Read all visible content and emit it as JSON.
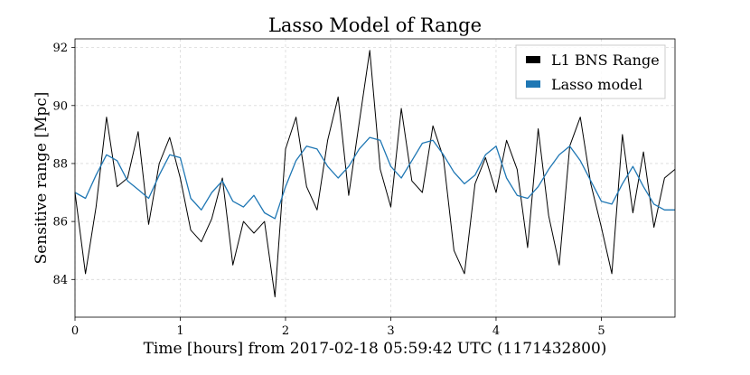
{
  "chart_data": {
    "type": "line",
    "title": "Lasso Model of Range",
    "xlabel": "Time [hours] from 2017-02-18 05:59:42 UTC (1171432800)",
    "ylabel": "Sensitive range [Mpc]",
    "xlim": [
      0,
      5.7
    ],
    "ylim": [
      82.7,
      92.3
    ],
    "xticks": [
      0,
      1,
      2,
      3,
      4,
      5
    ],
    "xtick_labels": [
      "0",
      "1",
      "2",
      "3",
      "4",
      "5"
    ],
    "yticks": [
      84,
      86,
      88,
      90,
      92
    ],
    "ytick_labels": [
      "84",
      "86",
      "88",
      "90",
      "92"
    ],
    "grid": true,
    "legend_position": "top-right",
    "series": [
      {
        "name": "L1 BNS Range",
        "color": "#000000",
        "x": [
          0.0,
          0.1,
          0.2,
          0.3,
          0.4,
          0.5,
          0.6,
          0.7,
          0.8,
          0.9,
          1.0,
          1.1,
          1.2,
          1.3,
          1.4,
          1.5,
          1.6,
          1.7,
          1.8,
          1.9,
          2.0,
          2.1,
          2.2,
          2.3,
          2.4,
          2.5,
          2.6,
          2.7,
          2.8,
          2.9,
          3.0,
          3.1,
          3.2,
          3.3,
          3.4,
          3.5,
          3.6,
          3.7,
          3.8,
          3.9,
          4.0,
          4.1,
          4.2,
          4.3,
          4.4,
          4.5,
          4.6,
          4.7,
          4.8,
          4.9,
          5.0,
          5.1,
          5.2,
          5.3,
          5.4,
          5.5,
          5.6,
          5.7
        ],
        "values": [
          87.0,
          84.2,
          86.5,
          89.6,
          87.2,
          87.5,
          89.1,
          85.9,
          88.0,
          88.9,
          87.5,
          85.7,
          85.3,
          86.1,
          87.5,
          84.5,
          86.0,
          85.6,
          86.0,
          83.4,
          88.5,
          89.6,
          87.2,
          86.4,
          88.8,
          90.3,
          86.9,
          89.4,
          91.9,
          87.8,
          86.5,
          89.9,
          87.4,
          87.0,
          89.3,
          88.2,
          85.0,
          84.2,
          87.3,
          88.2,
          87.0,
          88.8,
          87.8,
          85.1,
          89.2,
          86.2,
          84.5,
          88.6,
          89.6,
          87.3,
          85.8,
          84.2,
          89.0,
          86.3,
          88.4,
          85.8,
          87.5,
          87.8
        ]
      },
      {
        "name": "Lasso model",
        "color": "#1f77b4",
        "x": [
          0.0,
          0.1,
          0.2,
          0.3,
          0.4,
          0.5,
          0.6,
          0.7,
          0.8,
          0.9,
          1.0,
          1.1,
          1.2,
          1.3,
          1.4,
          1.5,
          1.6,
          1.7,
          1.8,
          1.9,
          2.0,
          2.1,
          2.2,
          2.3,
          2.4,
          2.5,
          2.6,
          2.7,
          2.8,
          2.9,
          3.0,
          3.1,
          3.2,
          3.3,
          3.4,
          3.5,
          3.6,
          3.7,
          3.8,
          3.9,
          4.0,
          4.1,
          4.2,
          4.3,
          4.4,
          4.5,
          4.6,
          4.7,
          4.8,
          4.9,
          5.0,
          5.1,
          5.2,
          5.3,
          5.4,
          5.5,
          5.6,
          5.7
        ],
        "values": [
          87.0,
          86.8,
          87.6,
          88.3,
          88.1,
          87.4,
          87.1,
          86.8,
          87.6,
          88.3,
          88.2,
          86.8,
          86.4,
          87.0,
          87.4,
          86.7,
          86.5,
          86.9,
          86.3,
          86.1,
          87.2,
          88.1,
          88.6,
          88.5,
          87.9,
          87.5,
          87.9,
          88.5,
          88.9,
          88.8,
          87.9,
          87.5,
          88.1,
          88.7,
          88.8,
          88.3,
          87.7,
          87.3,
          87.6,
          88.3,
          88.6,
          87.5,
          86.9,
          86.8,
          87.2,
          87.8,
          88.3,
          88.6,
          88.1,
          87.4,
          86.7,
          86.6,
          87.3,
          87.9,
          87.2,
          86.6,
          86.4,
          86.4
        ]
      }
    ]
  }
}
